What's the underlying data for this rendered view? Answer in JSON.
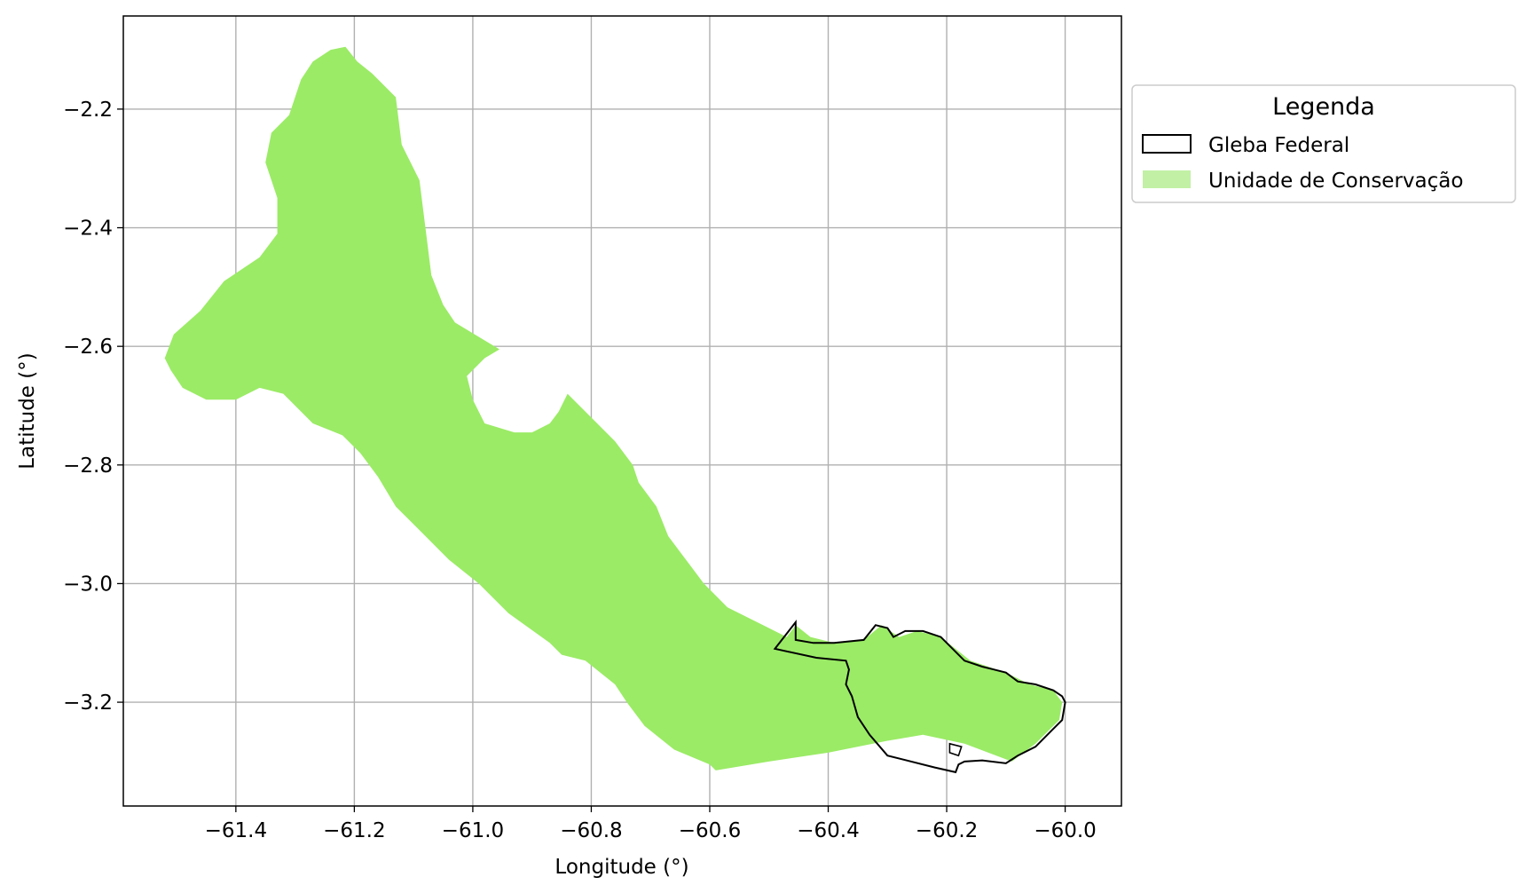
{
  "axes": {
    "xlabel": "Longitude (°)",
    "ylabel": "Latitude (°)",
    "xlim": [
      -61.59,
      -59.905
    ],
    "ylim": [
      -3.375,
      -2.043
    ],
    "xticks": [
      -61.4,
      -61.2,
      -61.0,
      -60.8,
      -60.6,
      -60.4,
      -60.2,
      -60.0
    ],
    "xtick_labels": [
      "−61.4",
      "−61.2",
      "−61.0",
      "−60.8",
      "−60.6",
      "−60.4",
      "−60.2",
      "−60.0"
    ],
    "yticks": [
      -2.2,
      -2.4,
      -2.6,
      -2.8,
      -3.0,
      -3.2
    ],
    "ytick_labels": [
      "−2.2",
      "−2.4",
      "−2.6",
      "−2.8",
      "−3.0",
      "−3.2"
    ],
    "grid": true,
    "grid_color": "#b0b0b0"
  },
  "legend": {
    "title": "Legenda",
    "placement": "outside-upper-right",
    "items": [
      {
        "label": "Gleba Federal",
        "style": "outline",
        "edge": "#000000",
        "fill": "none"
      },
      {
        "label": "Unidade de Conservação",
        "style": "fill",
        "fill": "#c2f0a5"
      }
    ]
  },
  "layers": {
    "unidade_conservacao": {
      "name": "Unidade de Conservação",
      "color": "#9beb66",
      "coords": [
        [
          -61.215,
          -2.095
        ],
        [
          -61.195,
          -2.12
        ],
        [
          -61.17,
          -2.14
        ],
        [
          -61.13,
          -2.18
        ],
        [
          -61.12,
          -2.26
        ],
        [
          -61.09,
          -2.32
        ],
        [
          -61.08,
          -2.4
        ],
        [
          -61.07,
          -2.48
        ],
        [
          -61.05,
          -2.53
        ],
        [
          -61.03,
          -2.56
        ],
        [
          -60.98,
          -2.59
        ],
        [
          -60.955,
          -2.605
        ],
        [
          -60.98,
          -2.62
        ],
        [
          -61.01,
          -2.65
        ],
        [
          -61.0,
          -2.69
        ],
        [
          -60.98,
          -2.73
        ],
        [
          -60.93,
          -2.745
        ],
        [
          -60.9,
          -2.745
        ],
        [
          -60.87,
          -2.73
        ],
        [
          -60.855,
          -2.71
        ],
        [
          -60.84,
          -2.68
        ],
        [
          -60.82,
          -2.7
        ],
        [
          -60.79,
          -2.73
        ],
        [
          -60.76,
          -2.76
        ],
        [
          -60.73,
          -2.8
        ],
        [
          -60.72,
          -2.83
        ],
        [
          -60.69,
          -2.87
        ],
        [
          -60.67,
          -2.92
        ],
        [
          -60.64,
          -2.96
        ],
        [
          -60.61,
          -3.0
        ],
        [
          -60.57,
          -3.04
        ],
        [
          -60.51,
          -3.07
        ],
        [
          -60.47,
          -3.09
        ],
        [
          -60.455,
          -3.07
        ],
        [
          -60.43,
          -3.09
        ],
        [
          -60.39,
          -3.1
        ],
        [
          -60.34,
          -3.095
        ],
        [
          -60.31,
          -3.07
        ],
        [
          -60.28,
          -3.09
        ],
        [
          -60.25,
          -3.08
        ],
        [
          -60.21,
          -3.09
        ],
        [
          -60.16,
          -3.13
        ],
        [
          -60.1,
          -3.15
        ],
        [
          -60.06,
          -3.17
        ],
        [
          -60.02,
          -3.18
        ],
        [
          -60.005,
          -3.2
        ],
        [
          -60.01,
          -3.23
        ],
        [
          -60.05,
          -3.27
        ],
        [
          -60.09,
          -3.3
        ],
        [
          -60.17,
          -3.27
        ],
        [
          -60.24,
          -3.255
        ],
        [
          -60.3,
          -3.265
        ],
        [
          -60.4,
          -3.285
        ],
        [
          -60.5,
          -3.3
        ],
        [
          -60.59,
          -3.315
        ],
        [
          -60.6,
          -3.305
        ],
        [
          -60.66,
          -3.28
        ],
        [
          -60.71,
          -3.24
        ],
        [
          -60.74,
          -3.2
        ],
        [
          -60.76,
          -3.17
        ],
        [
          -60.81,
          -3.13
        ],
        [
          -60.85,
          -3.12
        ],
        [
          -60.87,
          -3.1
        ],
        [
          -60.94,
          -3.05
        ],
        [
          -60.99,
          -3.0
        ],
        [
          -61.04,
          -2.96
        ],
        [
          -61.09,
          -2.91
        ],
        [
          -61.13,
          -2.87
        ],
        [
          -61.16,
          -2.82
        ],
        [
          -61.19,
          -2.78
        ],
        [
          -61.22,
          -2.75
        ],
        [
          -61.27,
          -2.73
        ],
        [
          -61.32,
          -2.68
        ],
        [
          -61.36,
          -2.67
        ],
        [
          -61.4,
          -2.69
        ],
        [
          -61.45,
          -2.69
        ],
        [
          -61.49,
          -2.67
        ],
        [
          -61.51,
          -2.64
        ],
        [
          -61.52,
          -2.62
        ],
        [
          -61.505,
          -2.58
        ],
        [
          -61.46,
          -2.54
        ],
        [
          -61.42,
          -2.49
        ],
        [
          -61.36,
          -2.45
        ],
        [
          -61.33,
          -2.41
        ],
        [
          -61.33,
          -2.35
        ],
        [
          -61.35,
          -2.29
        ],
        [
          -61.34,
          -2.24
        ],
        [
          -61.31,
          -2.21
        ],
        [
          -61.3,
          -2.18
        ],
        [
          -61.29,
          -2.15
        ],
        [
          -61.27,
          -2.12
        ],
        [
          -61.24,
          -2.1
        ]
      ]
    },
    "gleba_federal": {
      "name": "Gleba Federal",
      "stroke": "#000000",
      "coords": [
        [
          -60.455,
          -3.065
        ],
        [
          -60.455,
          -3.095
        ],
        [
          -60.425,
          -3.1
        ],
        [
          -60.39,
          -3.1
        ],
        [
          -60.34,
          -3.095
        ],
        [
          -60.32,
          -3.07
        ],
        [
          -60.3,
          -3.075
        ],
        [
          -60.29,
          -3.09
        ],
        [
          -60.27,
          -3.08
        ],
        [
          -60.24,
          -3.08
        ],
        [
          -60.21,
          -3.09
        ],
        [
          -60.17,
          -3.13
        ],
        [
          -60.14,
          -3.14
        ],
        [
          -60.12,
          -3.145
        ],
        [
          -60.1,
          -3.15
        ],
        [
          -60.08,
          -3.165
        ],
        [
          -60.05,
          -3.17
        ],
        [
          -60.02,
          -3.18
        ],
        [
          -60.005,
          -3.19
        ],
        [
          -60.0,
          -3.2
        ],
        [
          -60.005,
          -3.23
        ],
        [
          -60.02,
          -3.245
        ],
        [
          -60.05,
          -3.275
        ],
        [
          -60.08,
          -3.29
        ],
        [
          -60.1,
          -3.303
        ],
        [
          -60.14,
          -3.298
        ],
        [
          -60.17,
          -3.3
        ],
        [
          -60.18,
          -3.305
        ],
        [
          -60.185,
          -3.318
        ],
        [
          -60.22,
          -3.31
        ],
        [
          -60.3,
          -3.29
        ],
        [
          -60.33,
          -3.255
        ],
        [
          -60.35,
          -3.225
        ],
        [
          -60.36,
          -3.19
        ],
        [
          -60.37,
          -3.17
        ],
        [
          -60.365,
          -3.145
        ],
        [
          -60.37,
          -3.13
        ],
        [
          -60.42,
          -3.125
        ],
        [
          -60.49,
          -3.11
        ]
      ]
    },
    "gleba_small_parcel": {
      "coords": [
        [
          -60.195,
          -3.27
        ],
        [
          -60.175,
          -3.275
        ],
        [
          -60.18,
          -3.29
        ],
        [
          -60.195,
          -3.285
        ]
      ]
    }
  }
}
